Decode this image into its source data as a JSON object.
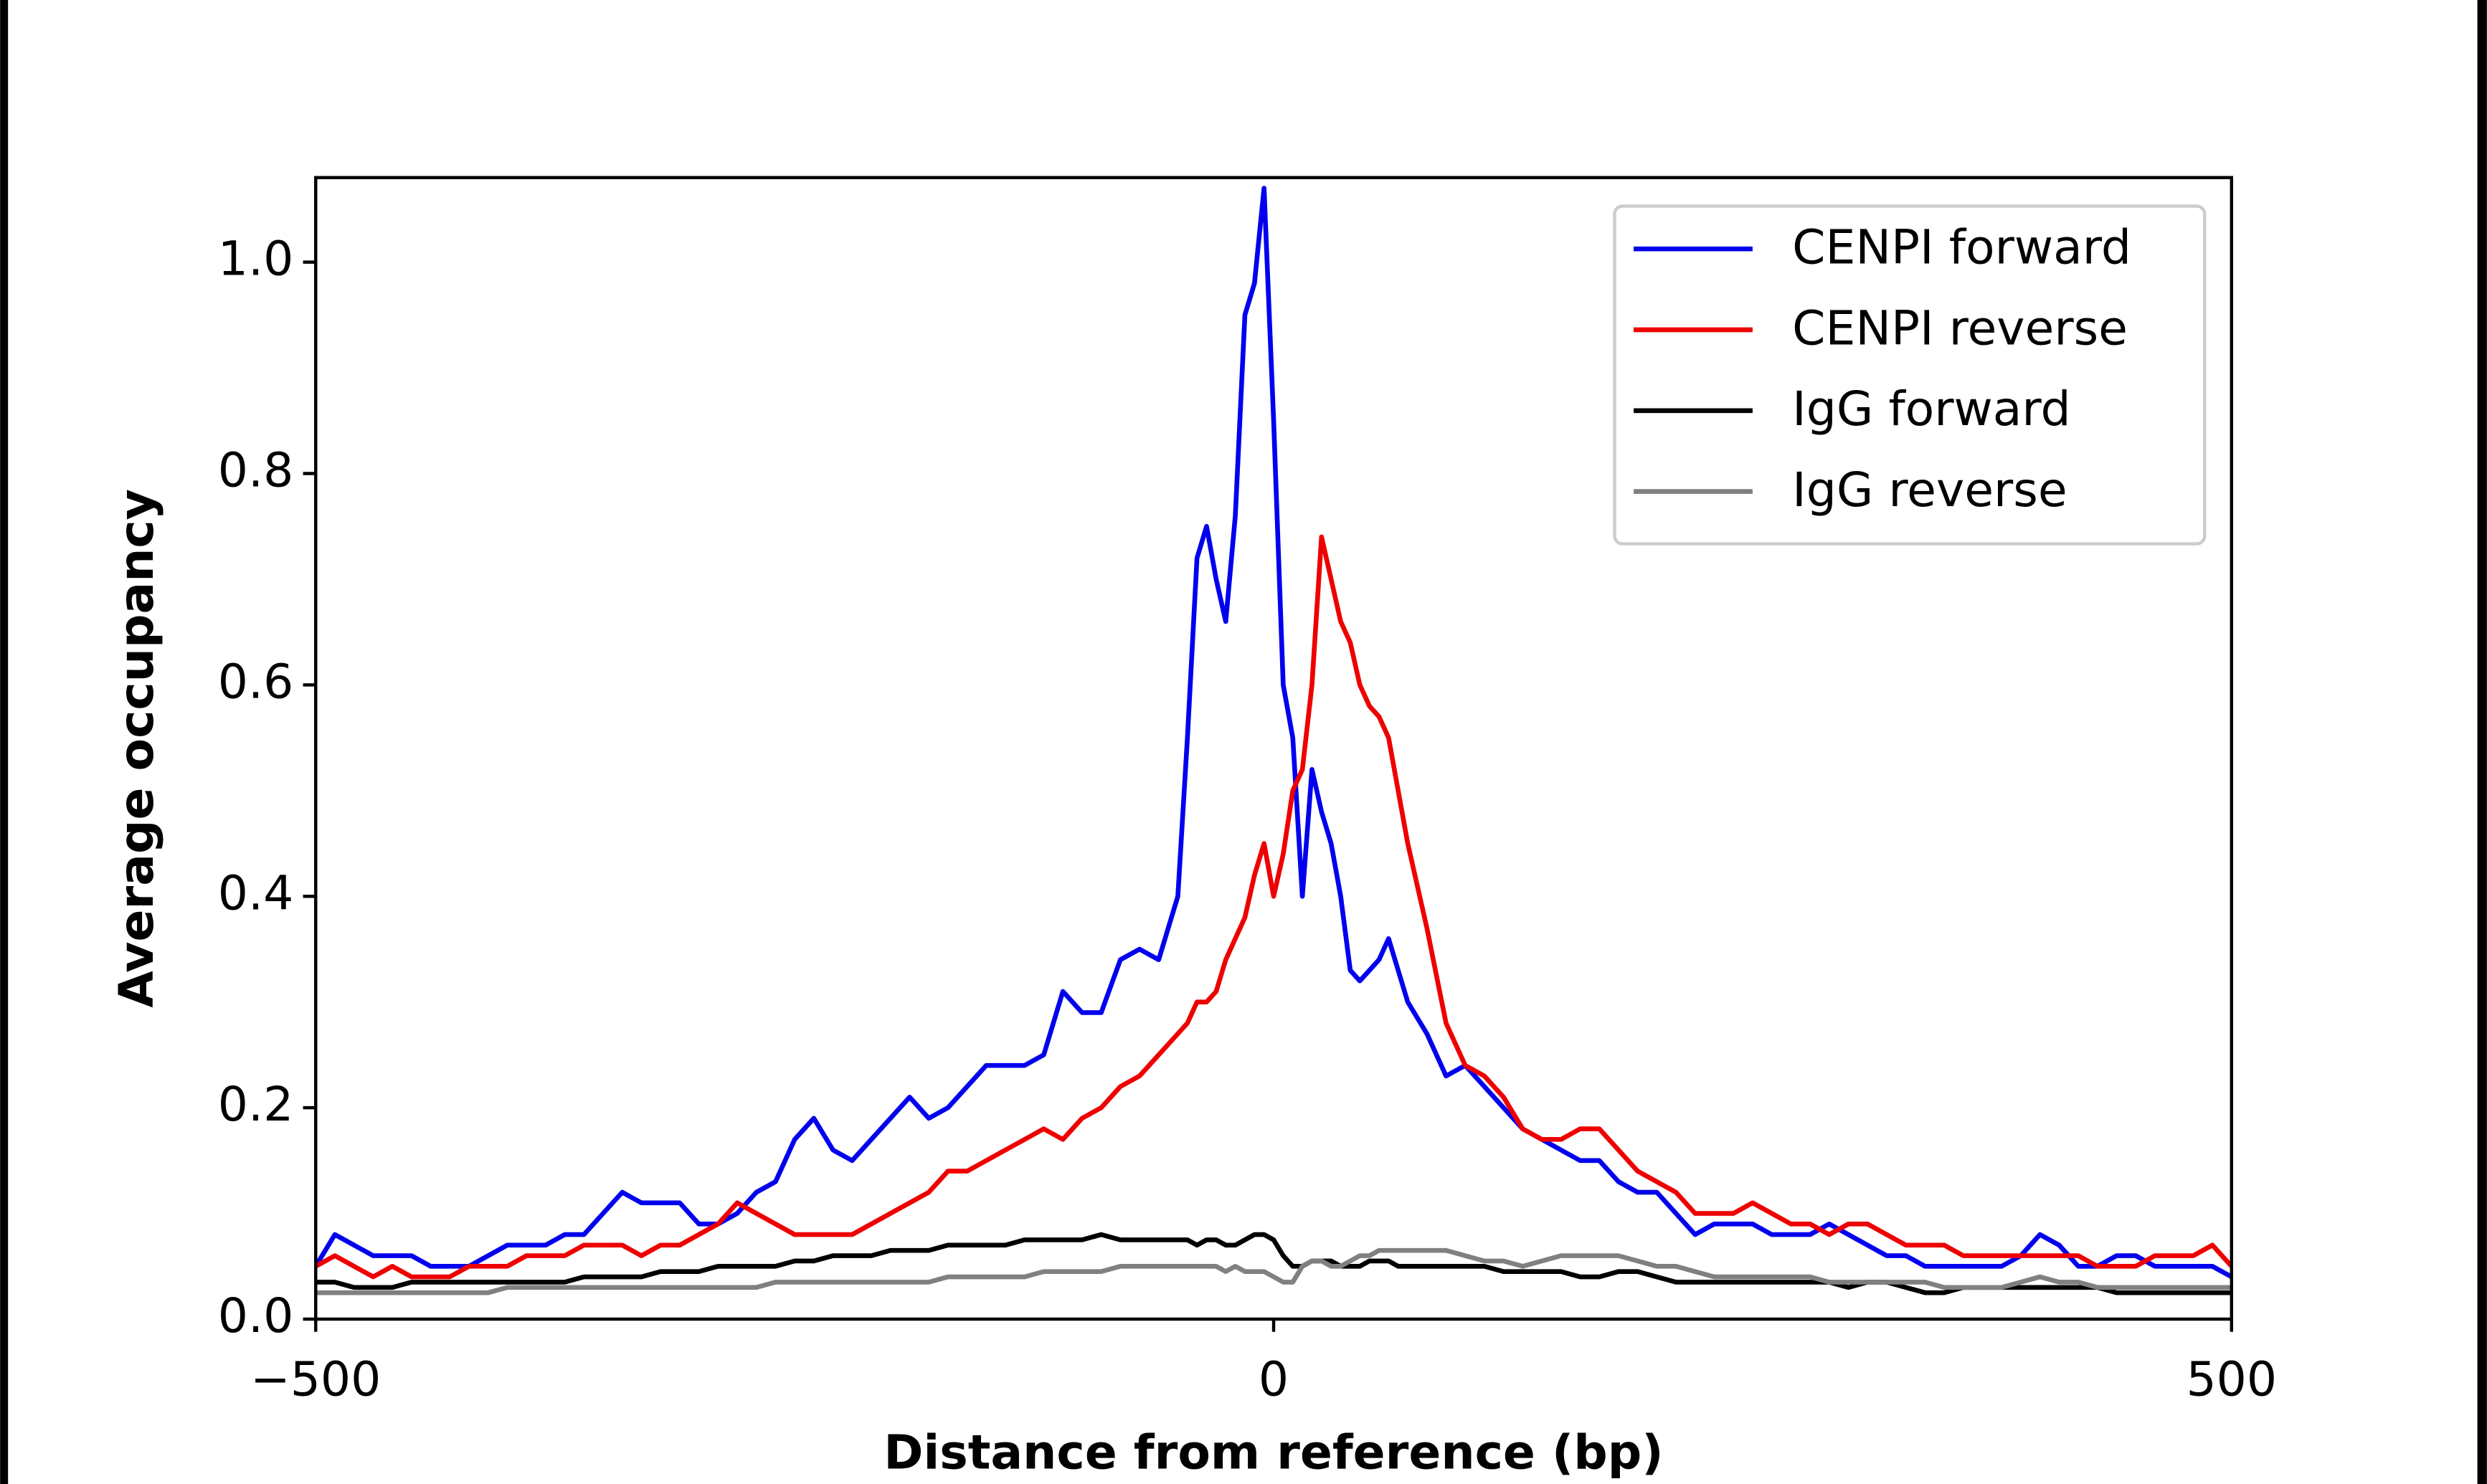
{
  "chart_data": {
    "type": "line",
    "x_label": "Distance from reference (bp)",
    "y_label": "Average occupancy",
    "xlim": [
      -500,
      500
    ],
    "ylim": [
      0,
      1.08
    ],
    "xticks": [
      {
        "value": -500,
        "label": "−500"
      },
      0,
      500
    ],
    "yticks": [
      {
        "value": 0,
        "label": "0.0"
      },
      0.2,
      0.4,
      0.6,
      0.8,
      {
        "value": 1,
        "label": "1.0"
      }
    ],
    "grid": false,
    "legend": "upper right",
    "x": [
      -500,
      -490,
      -480,
      -470,
      -460,
      -450,
      -440,
      -430,
      -420,
      -410,
      -400,
      -390,
      -380,
      -370,
      -360,
      -350,
      -340,
      -330,
      -320,
      -310,
      -300,
      -290,
      -280,
      -270,
      -260,
      -250,
      -240,
      -230,
      -220,
      -210,
      -200,
      -190,
      -180,
      -170,
      -160,
      -150,
      -140,
      -130,
      -120,
      -110,
      -100,
      -90,
      -80,
      -70,
      -60,
      -50,
      -45,
      -40,
      -35,
      -30,
      -25,
      -20,
      -15,
      -10,
      -5,
      0,
      5,
      10,
      15,
      20,
      25,
      30,
      35,
      40,
      45,
      50,
      55,
      60,
      65,
      70,
      80,
      90,
      100,
      110,
      120,
      130,
      140,
      150,
      160,
      170,
      180,
      190,
      200,
      210,
      220,
      230,
      240,
      250,
      260,
      270,
      280,
      290,
      300,
      310,
      320,
      330,
      340,
      350,
      360,
      370,
      380,
      390,
      400,
      410,
      420,
      430,
      440,
      450,
      460,
      470,
      480,
      490,
      500
    ],
    "series": [
      {
        "name": "CENPI forward",
        "color": "#0000ee",
        "values": [
          0.05,
          0.08,
          0.07,
          0.06,
          0.06,
          0.06,
          0.05,
          0.05,
          0.05,
          0.06,
          0.07,
          0.07,
          0.07,
          0.08,
          0.08,
          0.1,
          0.12,
          0.11,
          0.11,
          0.11,
          0.09,
          0.09,
          0.1,
          0.12,
          0.13,
          0.17,
          0.19,
          0.16,
          0.15,
          0.17,
          0.19,
          0.21,
          0.19,
          0.2,
          0.22,
          0.24,
          0.24,
          0.24,
          0.25,
          0.31,
          0.29,
          0.29,
          0.34,
          0.35,
          0.34,
          0.4,
          0.55,
          0.72,
          0.75,
          0.7,
          0.66,
          0.76,
          0.95,
          0.98,
          1.07,
          0.85,
          0.6,
          0.55,
          0.4,
          0.52,
          0.48,
          0.45,
          0.4,
          0.33,
          0.32,
          0.33,
          0.34,
          0.36,
          0.33,
          0.3,
          0.27,
          0.23,
          0.24,
          0.22,
          0.2,
          0.18,
          0.17,
          0.16,
          0.15,
          0.15,
          0.13,
          0.12,
          0.12,
          0.1,
          0.08,
          0.09,
          0.09,
          0.09,
          0.08,
          0.08,
          0.08,
          0.09,
          0.08,
          0.07,
          0.06,
          0.06,
          0.05,
          0.05,
          0.05,
          0.05,
          0.05,
          0.06,
          0.08,
          0.07,
          0.05,
          0.05,
          0.06,
          0.06,
          0.05,
          0.05,
          0.05,
          0.05,
          0.04
        ]
      },
      {
        "name": "CENPI reverse",
        "color": "#ee0000",
        "values": [
          0.05,
          0.06,
          0.05,
          0.04,
          0.05,
          0.04,
          0.04,
          0.04,
          0.05,
          0.05,
          0.05,
          0.06,
          0.06,
          0.06,
          0.07,
          0.07,
          0.07,
          0.06,
          0.07,
          0.07,
          0.08,
          0.09,
          0.11,
          0.1,
          0.09,
          0.08,
          0.08,
          0.08,
          0.08,
          0.09,
          0.1,
          0.11,
          0.12,
          0.14,
          0.14,
          0.15,
          0.16,
          0.17,
          0.18,
          0.17,
          0.19,
          0.2,
          0.22,
          0.23,
          0.25,
          0.27,
          0.28,
          0.3,
          0.3,
          0.31,
          0.34,
          0.36,
          0.38,
          0.42,
          0.45,
          0.4,
          0.44,
          0.5,
          0.52,
          0.6,
          0.74,
          0.7,
          0.66,
          0.64,
          0.6,
          0.58,
          0.57,
          0.55,
          0.5,
          0.45,
          0.37,
          0.28,
          0.24,
          0.23,
          0.21,
          0.18,
          0.17,
          0.17,
          0.18,
          0.18,
          0.16,
          0.14,
          0.13,
          0.12,
          0.1,
          0.1,
          0.1,
          0.11,
          0.1,
          0.09,
          0.09,
          0.08,
          0.09,
          0.09,
          0.08,
          0.07,
          0.07,
          0.07,
          0.06,
          0.06,
          0.06,
          0.06,
          0.06,
          0.06,
          0.06,
          0.05,
          0.05,
          0.05,
          0.06,
          0.06,
          0.06,
          0.07,
          0.05
        ]
      },
      {
        "name": "IgG forward",
        "color": "#000000",
        "values": [
          0.035,
          0.035,
          0.03,
          0.03,
          0.03,
          0.035,
          0.035,
          0.035,
          0.035,
          0.035,
          0.035,
          0.035,
          0.035,
          0.035,
          0.04,
          0.04,
          0.04,
          0.04,
          0.045,
          0.045,
          0.045,
          0.05,
          0.05,
          0.05,
          0.05,
          0.055,
          0.055,
          0.06,
          0.06,
          0.06,
          0.065,
          0.065,
          0.065,
          0.07,
          0.07,
          0.07,
          0.07,
          0.075,
          0.075,
          0.075,
          0.075,
          0.08,
          0.075,
          0.075,
          0.075,
          0.075,
          0.075,
          0.07,
          0.075,
          0.075,
          0.07,
          0.07,
          0.075,
          0.08,
          0.08,
          0.075,
          0.06,
          0.05,
          0.05,
          0.055,
          0.055,
          0.055,
          0.05,
          0.05,
          0.05,
          0.055,
          0.055,
          0.055,
          0.05,
          0.05,
          0.05,
          0.05,
          0.05,
          0.05,
          0.045,
          0.045,
          0.045,
          0.045,
          0.04,
          0.04,
          0.045,
          0.045,
          0.04,
          0.035,
          0.035,
          0.035,
          0.035,
          0.035,
          0.035,
          0.035,
          0.035,
          0.035,
          0.03,
          0.035,
          0.035,
          0.03,
          0.025,
          0.025,
          0.03,
          0.03,
          0.03,
          0.03,
          0.03,
          0.03,
          0.03,
          0.03,
          0.025,
          0.025,
          0.025,
          0.025,
          0.025,
          0.025,
          0.025
        ]
      },
      {
        "name": "IgG reverse",
        "color": "#808080",
        "values": [
          0.025,
          0.025,
          0.025,
          0.025,
          0.025,
          0.025,
          0.025,
          0.025,
          0.025,
          0.025,
          0.03,
          0.03,
          0.03,
          0.03,
          0.03,
          0.03,
          0.03,
          0.03,
          0.03,
          0.03,
          0.03,
          0.03,
          0.03,
          0.03,
          0.035,
          0.035,
          0.035,
          0.035,
          0.035,
          0.035,
          0.035,
          0.035,
          0.035,
          0.04,
          0.04,
          0.04,
          0.04,
          0.04,
          0.045,
          0.045,
          0.045,
          0.045,
          0.05,
          0.05,
          0.05,
          0.05,
          0.05,
          0.05,
          0.05,
          0.05,
          0.045,
          0.05,
          0.045,
          0.045,
          0.045,
          0.04,
          0.035,
          0.035,
          0.05,
          0.055,
          0.055,
          0.05,
          0.05,
          0.055,
          0.06,
          0.06,
          0.065,
          0.065,
          0.065,
          0.065,
          0.065,
          0.065,
          0.06,
          0.055,
          0.055,
          0.05,
          0.055,
          0.06,
          0.06,
          0.06,
          0.06,
          0.055,
          0.05,
          0.05,
          0.045,
          0.04,
          0.04,
          0.04,
          0.04,
          0.04,
          0.04,
          0.035,
          0.035,
          0.035,
          0.035,
          0.035,
          0.035,
          0.03,
          0.03,
          0.03,
          0.03,
          0.035,
          0.04,
          0.035,
          0.035,
          0.03,
          0.03,
          0.03,
          0.03,
          0.03,
          0.03,
          0.03,
          0.03
        ]
      }
    ]
  }
}
